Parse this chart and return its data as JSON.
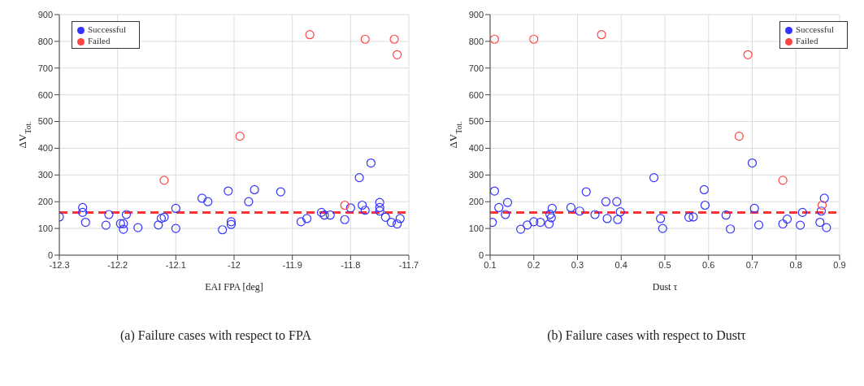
{
  "chart_data": [
    {
      "type": "scatter",
      "xlabel": "EAI FPA [deg]",
      "ylabel": "ΔV$_{Tot.}$",
      "annotations": [
        "(a) Failure cases with respect to FPA"
      ],
      "xlim": [
        -12.3,
        -11.7
      ],
      "xticks": [
        -12.3,
        -12.2,
        -12.1,
        -12,
        -11.9,
        -11.8,
        -11.7
      ],
      "ylim": [
        0,
        900
      ],
      "yticks": [
        0,
        100,
        200,
        300,
        400,
        500,
        600,
        700,
        800,
        900
      ],
      "grid": true,
      "legend": "top left",
      "marker": "circle",
      "ref_lines": [
        {
          "axis": "y",
          "value": 160,
          "color": "#ff3333",
          "line_style": "dashed"
        }
      ],
      "series": [
        {
          "name": "Successful",
          "color": "#3333ff",
          "x": [
            -12.3,
            -12.26,
            -12.26,
            -12.255,
            -12.22,
            -12.215,
            -12.195,
            -12.19,
            -12.19,
            -12.185,
            -12.165,
            -12.13,
            -12.125,
            -12.12,
            -12.1,
            -12.1,
            -12.055,
            -12.045,
            -12.02,
            -12.01,
            -12.005,
            -12.005,
            -11.975,
            -11.965,
            -11.92,
            -11.885,
            -11.875,
            -11.85,
            -11.845,
            -11.835,
            -11.81,
            -11.8,
            -11.785,
            -11.78,
            -11.775,
            -11.765,
            -11.75,
            -11.75,
            -11.75,
            -11.74,
            -11.73,
            -11.72,
            -11.715
          ],
          "values": [
            143,
            178,
            160,
            123,
            112,
            152,
            118,
            97,
            118,
            152,
            103,
            113,
            138,
            142,
            175,
            100,
            213,
            200,
            95,
            240,
            125,
            115,
            200,
            245,
            237,
            125,
            137,
            160,
            150,
            150,
            133,
            177,
            290,
            187,
            168,
            345,
            197,
            178,
            165,
            142,
            123,
            117,
            137
          ]
        },
        {
          "name": "Failed",
          "color": "#ff4444",
          "x": [
            -12.12,
            -11.99,
            -11.87,
            -11.81,
            -11.775,
            -11.725,
            -11.72
          ],
          "values": [
            280,
            445,
            825,
            187,
            808,
            808,
            750
          ]
        }
      ]
    },
    {
      "type": "scatter",
      "xlabel": "Dust τ",
      "ylabel": "ΔV$_{Tot.}$",
      "annotations": [
        "(b) Failure cases with respect to Dustτ"
      ],
      "xlim": [
        0.1,
        0.9
      ],
      "xticks": [
        0.1,
        0.2,
        0.3,
        0.4,
        0.5,
        0.6,
        0.7,
        0.8,
        0.9
      ],
      "ylim": [
        0,
        900
      ],
      "yticks": [
        0,
        100,
        200,
        300,
        400,
        500,
        600,
        700,
        800,
        900
      ],
      "grid": true,
      "legend": "top right",
      "marker": "circle",
      "ref_lines": [
        {
          "axis": "y",
          "value": 160,
          "color": "#ff3333",
          "line_style": "dashed"
        }
      ],
      "series": [
        {
          "name": "Successful",
          "color": "#3333ff",
          "x": [
            0.105,
            0.11,
            0.12,
            0.135,
            0.14,
            0.17,
            0.185,
            0.2,
            0.215,
            0.235,
            0.237,
            0.24,
            0.242,
            0.285,
            0.305,
            0.32,
            0.34,
            0.365,
            0.368,
            0.39,
            0.392,
            0.398,
            0.475,
            0.49,
            0.495,
            0.555,
            0.565,
            0.59,
            0.592,
            0.64,
            0.65,
            0.7,
            0.705,
            0.715,
            0.77,
            0.78,
            0.81,
            0.815,
            0.855,
            0.858,
            0.865,
            0.87
          ],
          "values": [
            123,
            240,
            178,
            152,
            197,
            97,
            113,
            125,
            123,
            117,
            153,
            140,
            175,
            178,
            165,
            237,
            152,
            200,
            137,
            200,
            133,
            162,
            290,
            137,
            100,
            142,
            143,
            245,
            187,
            150,
            98,
            345,
            175,
            113,
            117,
            135,
            112,
            160,
            123,
            165,
            213,
            103
          ]
        },
        {
          "name": "Failed",
          "color": "#ff4444",
          "x": [
            0.11,
            0.2,
            0.355,
            0.67,
            0.69,
            0.77,
            0.86
          ],
          "values": [
            808,
            808,
            825,
            445,
            750,
            280,
            187
          ]
        }
      ]
    }
  ]
}
